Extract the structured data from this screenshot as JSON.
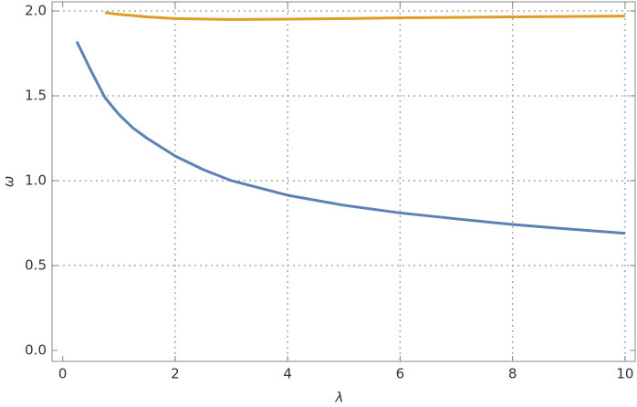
{
  "chart_data": {
    "type": "line",
    "x_label": "λ",
    "y_label": "ω",
    "xlim": [
      -0.19,
      10.18
    ],
    "ylim": [
      -0.065,
      2.054
    ],
    "xticks": [
      0,
      2,
      4,
      6,
      8,
      10
    ],
    "yticks": [
      {
        "value": 0,
        "label": "0.0"
      },
      {
        "value": 0.5,
        "label": "0.5"
      },
      {
        "value": 1,
        "label": "1.0"
      },
      {
        "value": 1.5,
        "label": "1.5"
      },
      {
        "value": 2,
        "label": "2.0"
      }
    ],
    "grid": true,
    "series": [
      {
        "color": "#5e81b5",
        "x": [
          0.25,
          0.5,
          0.75,
          1,
          1.25,
          1.5,
          2,
          2.5,
          3,
          4,
          5,
          6,
          7,
          8,
          9,
          10
        ],
        "values": [
          1.82,
          1.65,
          1.49,
          1.39,
          1.31,
          1.25,
          1.145,
          1.065,
          1.0,
          0.914,
          0.855,
          0.81,
          0.775,
          0.742,
          0.715,
          0.69
        ]
      },
      {
        "color": "#e19c24",
        "x": [
          0.75,
          1,
          1.5,
          2,
          3,
          4,
          5,
          6,
          8,
          10
        ],
        "values": [
          1.99,
          1.98,
          1.965,
          1.955,
          1.95,
          1.952,
          1.955,
          1.96,
          1.965,
          1.97
        ]
      }
    ]
  }
}
